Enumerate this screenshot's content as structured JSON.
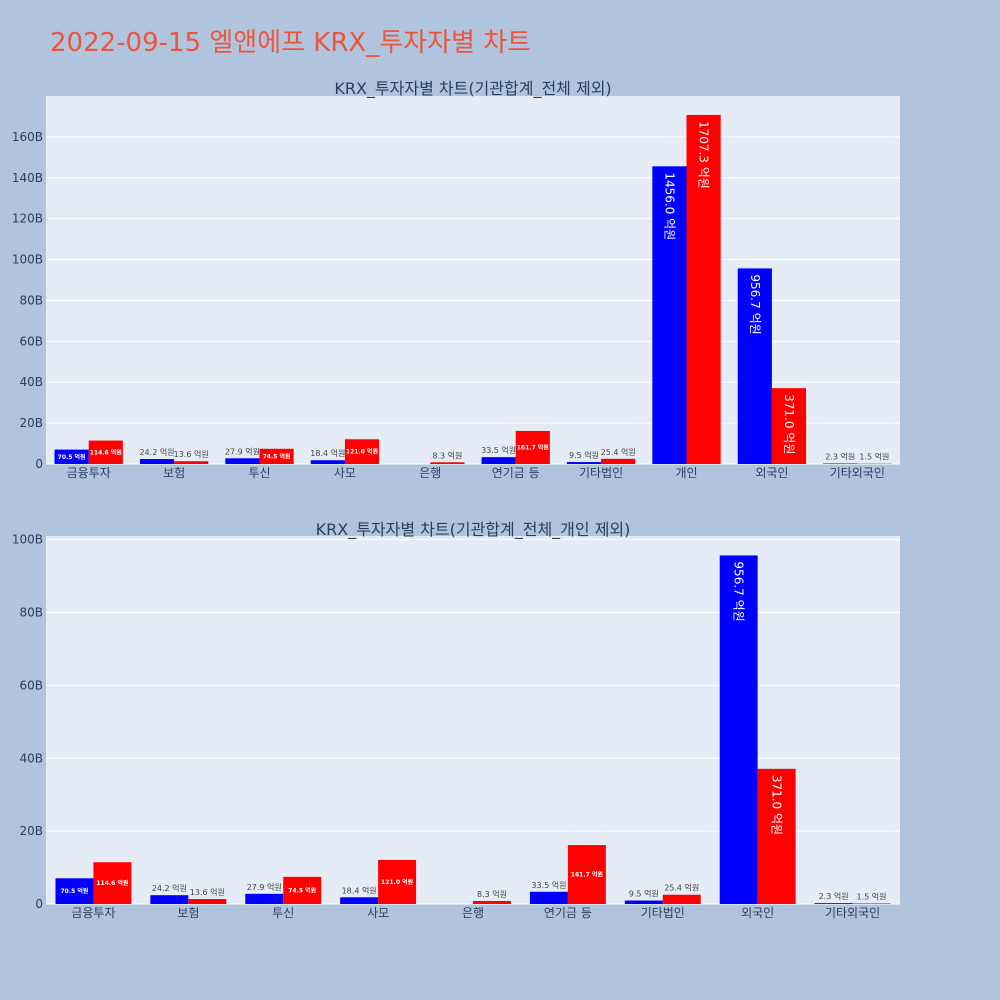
{
  "page_title": "2022-09-15 엘앤에프 KRX_투자자별 차트",
  "colors": {
    "title": "#ef553b",
    "page_bg": "#b0c4de",
    "plot_bg": "#e5ecf6",
    "series_blue": "#0000ff",
    "series_red": "#ff0000"
  },
  "chart_data": [
    {
      "type": "bar",
      "title": "KRX_투자자별 차트(기관합계_전체 제외)",
      "categories": [
        "금융투자",
        "보험",
        "투신",
        "사모",
        "은행",
        "연기금 등",
        "기타법인",
        "개인",
        "외국인",
        "기타외국인"
      ],
      "series": [
        {
          "color": "#0000ff",
          "values": [
            7.05,
            2.42,
            2.79,
            1.84,
            0,
            3.35,
            0.95,
            145.6,
            95.67,
            0.23
          ],
          "labels": [
            "70.5 억원",
            "24.2 억원",
            "27.9 억원",
            "18.4 억원",
            "",
            "33.5 억원",
            "9.5 억원",
            "1456.0 억원",
            "956.7 억원",
            "2.3 억원"
          ]
        },
        {
          "color": "#ff0000",
          "values": [
            11.46,
            1.36,
            7.45,
            12.1,
            0.83,
            16.17,
            2.54,
            170.73,
            37.1,
            0.15
          ],
          "labels": [
            "114.6 억원",
            "13.6 억원",
            "74.5 억원",
            "121.0 억원",
            "8.3 억원",
            "161.7 억원",
            "25.4 억원",
            "1707.3 억원",
            "371.0 억원",
            "1.5 억원"
          ]
        }
      ],
      "yticks": [
        "0",
        "20B",
        "40B",
        "60B",
        "80B",
        "100B",
        "120B",
        "140B",
        "160B"
      ],
      "ylim": [
        0,
        180
      ]
    },
    {
      "type": "bar",
      "title": "KRX_투자자별 차트(기관합계_전체_개인 제외)",
      "categories": [
        "금융투자",
        "보험",
        "투신",
        "사모",
        "은행",
        "연기금 등",
        "기타법인",
        "외국인",
        "기타외국인"
      ],
      "series": [
        {
          "color": "#0000ff",
          "values": [
            7.05,
            2.42,
            2.79,
            1.84,
            0,
            3.35,
            0.95,
            95.67,
            0.23
          ],
          "labels": [
            "70.5 억원",
            "24.2 억원",
            "27.9 억원",
            "18.4 억원",
            "",
            "33.5 억원",
            "9.5 억원",
            "956.7 억원",
            "2.3 억원"
          ]
        },
        {
          "color": "#ff0000",
          "values": [
            11.46,
            1.36,
            7.45,
            12.1,
            0.83,
            16.17,
            2.54,
            37.1,
            0.15
          ],
          "labels": [
            "114.6 억원",
            "13.6 억원",
            "74.5 억원",
            "121.0 억원",
            "8.3 억원",
            "161.7 억원",
            "25.4 억원",
            "371.0 억원",
            "1.5 억원"
          ]
        }
      ],
      "yticks": [
        "0",
        "20B",
        "40B",
        "60B",
        "80B",
        "100B"
      ],
      "ylim": [
        0,
        101
      ]
    }
  ]
}
